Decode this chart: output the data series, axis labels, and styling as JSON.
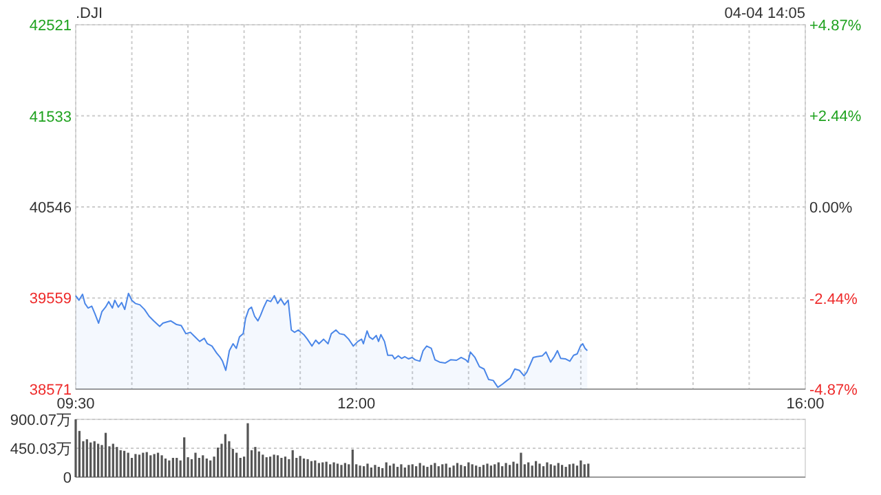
{
  "chart_data": [
    {
      "type": "area",
      "title": ".DJI",
      "annotations": [
        "04-04 14:05"
      ],
      "color": "#4a86e8",
      "grid": true,
      "xlim": [
        9.5,
        16
      ],
      "xticks": [
        {
          "value": 9.5,
          "label": "09:30"
        },
        {
          "value": 10,
          "label": null
        },
        {
          "value": 10.5,
          "label": null
        },
        {
          "value": 11,
          "label": null
        },
        {
          "value": 11.5,
          "label": null
        },
        {
          "value": 12,
          "label": "12:00"
        },
        {
          "value": 12.5,
          "label": null
        },
        {
          "value": 13,
          "label": null
        },
        {
          "value": 13.5,
          "label": null
        },
        {
          "value": 14,
          "label": null
        },
        {
          "value": 14.5,
          "label": null
        },
        {
          "value": 15,
          "label": null
        },
        {
          "value": 15.5,
          "label": null
        },
        {
          "value": 16,
          "label": "16:00"
        }
      ],
      "ylim": [
        38571,
        42521
      ],
      "yticks": [
        38571,
        39559,
        40546,
        41533,
        42521
      ],
      "y2lim": [
        -4.87,
        4.87
      ],
      "y2ticks": [
        {
          "value": -4.87,
          "label": "-4.87%"
        },
        {
          "value": -2.44,
          "label": "-2.44%"
        },
        {
          "value": 0,
          "label": "0.00%"
        },
        {
          "value": 2.44,
          "label": "+2.44%"
        },
        {
          "value": 4.87,
          "label": "+4.87%"
        }
      ],
      "x": [
        9.5,
        9.529,
        9.561,
        9.582,
        9.61,
        9.643,
        9.672,
        9.704,
        9.733,
        9.766,
        9.794,
        9.827,
        9.848,
        9.88,
        9.909,
        9.937,
        9.97,
        9.999,
        10.031,
        10.072,
        10.113,
        10.154,
        10.195,
        10.248,
        10.277,
        10.318,
        10.346,
        10.399,
        10.44,
        10.481,
        10.522,
        10.563,
        10.604,
        10.645,
        10.673,
        10.714,
        10.755,
        10.788,
        10.808,
        10.837,
        10.869,
        10.902,
        10.931,
        10.959,
        10.992,
        11.013,
        11.041,
        11.066,
        11.094,
        11.123,
        11.147,
        11.176,
        11.205,
        11.237,
        11.27,
        11.299,
        11.327,
        11.36,
        11.393,
        11.421,
        11.45,
        11.483,
        11.532,
        11.564,
        11.605,
        11.638,
        11.667,
        11.708,
        11.748,
        11.777,
        11.818,
        11.851,
        11.892,
        11.932,
        11.973,
        12.014,
        12.047,
        12.063,
        12.096,
        12.116,
        12.145,
        12.178,
        12.198,
        12.219,
        12.251,
        12.28,
        12.321,
        12.341,
        12.374,
        12.403,
        12.431,
        12.464,
        12.497,
        12.525,
        12.566,
        12.595,
        12.627,
        12.668,
        12.701,
        12.742,
        12.791,
        12.84,
        12.893,
        12.934,
        12.975,
        12.995,
        13.016,
        13.057,
        13.097,
        13.138,
        13.179,
        13.22,
        13.261,
        13.302,
        13.343,
        13.371,
        13.412,
        13.453,
        13.494,
        13.519,
        13.576,
        13.608,
        13.658,
        13.69,
        13.731,
        13.764,
        13.792,
        13.821,
        13.862,
        13.903,
        13.936,
        13.968,
        13.997,
        14.017,
        14.038,
        14.058
      ],
      "values": [
        39584,
        39535,
        39599,
        39500,
        39450,
        39470,
        39386,
        39286,
        39410,
        39460,
        39520,
        39450,
        39535,
        39460,
        39510,
        39435,
        39609,
        39535,
        39500,
        39485,
        39435,
        39361,
        39311,
        39251,
        39286,
        39301,
        39311,
        39271,
        39261,
        39172,
        39187,
        39137,
        39088,
        39122,
        39063,
        39038,
        38963,
        38914,
        38874,
        38775,
        38988,
        39063,
        39013,
        39137,
        39172,
        39336,
        39435,
        39460,
        39361,
        39311,
        39371,
        39460,
        39535,
        39520,
        39584,
        39500,
        39550,
        39485,
        39535,
        39212,
        39187,
        39212,
        39162,
        39112,
        39038,
        39102,
        39063,
        39112,
        39063,
        39172,
        39212,
        39172,
        39162,
        39112,
        39038,
        39088,
        39112,
        39063,
        39202,
        39137,
        39112,
        39152,
        39088,
        39162,
        39088,
        38938,
        38938,
        38899,
        38933,
        38904,
        38923,
        38899,
        38914,
        38889,
        38874,
        38988,
        39038,
        39013,
        38889,
        38864,
        38854,
        38889,
        38884,
        38914,
        38889,
        38864,
        38973,
        38914,
        38814,
        38789,
        38675,
        38665,
        38591,
        38625,
        38665,
        38690,
        38789,
        38774,
        38715,
        38755,
        38914,
        38923,
        38933,
        38973,
        38864,
        38923,
        38988,
        38904,
        38899,
        38874,
        38938,
        38953,
        39038,
        39063,
        39013,
        38988
      ]
    },
    {
      "type": "bar",
      "color": "#555555",
      "grid": "y",
      "tick_labels": "y",
      "xlim": [
        9.5,
        16
      ],
      "ylim": [
        0,
        900.07
      ],
      "yticks": [
        0,
        {
          "value": 450.03,
          "label": "450.03万"
        },
        {
          "value": 900.07,
          "label": "900.07万"
        }
      ],
      "x": [
        9.5,
        9.533,
        9.567,
        9.6,
        9.633,
        9.667,
        9.7,
        9.733,
        9.767,
        9.8,
        9.833,
        9.867,
        9.9,
        9.933,
        9.967,
        10,
        10.033,
        10.067,
        10.1,
        10.133,
        10.167,
        10.2,
        10.233,
        10.267,
        10.3,
        10.333,
        10.367,
        10.4,
        10.433,
        10.467,
        10.5,
        10.533,
        10.567,
        10.6,
        10.633,
        10.667,
        10.7,
        10.733,
        10.767,
        10.8,
        10.833,
        10.867,
        10.9,
        10.933,
        10.967,
        11,
        11.033,
        11.067,
        11.1,
        11.133,
        11.167,
        11.2,
        11.233,
        11.267,
        11.3,
        11.333,
        11.367,
        11.4,
        11.433,
        11.467,
        11.5,
        11.533,
        11.567,
        11.6,
        11.633,
        11.667,
        11.7,
        11.733,
        11.767,
        11.8,
        11.833,
        11.867,
        11.9,
        11.933,
        11.967,
        12,
        12.033,
        12.067,
        12.1,
        12.133,
        12.167,
        12.2,
        12.233,
        12.267,
        12.3,
        12.333,
        12.367,
        12.4,
        12.433,
        12.467,
        12.5,
        12.533,
        12.567,
        12.6,
        12.633,
        12.667,
        12.7,
        12.733,
        12.767,
        12.8,
        12.833,
        12.867,
        12.9,
        12.933,
        12.967,
        13,
        13.033,
        13.067,
        13.1,
        13.133,
        13.167,
        13.2,
        13.233,
        13.267,
        13.3,
        13.333,
        13.367,
        13.4,
        13.433,
        13.467,
        13.5,
        13.533,
        13.567,
        13.6,
        13.633,
        13.667,
        13.7,
        13.733,
        13.767,
        13.8,
        13.833,
        13.867,
        13.9,
        13.933,
        13.967,
        14,
        14.033,
        14.067
      ],
      "values": [
        900,
        720,
        560,
        590,
        540,
        560,
        520,
        500,
        690,
        480,
        520,
        470,
        420,
        410,
        380,
        300,
        360,
        350,
        380,
        390,
        340,
        360,
        380,
        340,
        290,
        260,
        300,
        300,
        260,
        620,
        310,
        280,
        380,
        300,
        340,
        290,
        260,
        320,
        460,
        520,
        670,
        560,
        440,
        380,
        300,
        320,
        840,
        420,
        470,
        400,
        350,
        310,
        320,
        350,
        340,
        300,
        320,
        280,
        420,
        300,
        330,
        290,
        280,
        250,
        260,
        220,
        230,
        240,
        200,
        230,
        210,
        190,
        220,
        200,
        430,
        200,
        180,
        170,
        210,
        150,
        190,
        160,
        140,
        230,
        180,
        210,
        160,
        200,
        150,
        190,
        200,
        170,
        220,
        180,
        160,
        190,
        220,
        170,
        200,
        210,
        150,
        180,
        220,
        190,
        170,
        230,
        200,
        180,
        160,
        190,
        210,
        180,
        200,
        230,
        170,
        220,
        190,
        240,
        210,
        380,
        200,
        230,
        180,
        250,
        210,
        170,
        230,
        200,
        180,
        220,
        190,
        160,
        200,
        210,
        180,
        260,
        200,
        210
      ]
    }
  ]
}
